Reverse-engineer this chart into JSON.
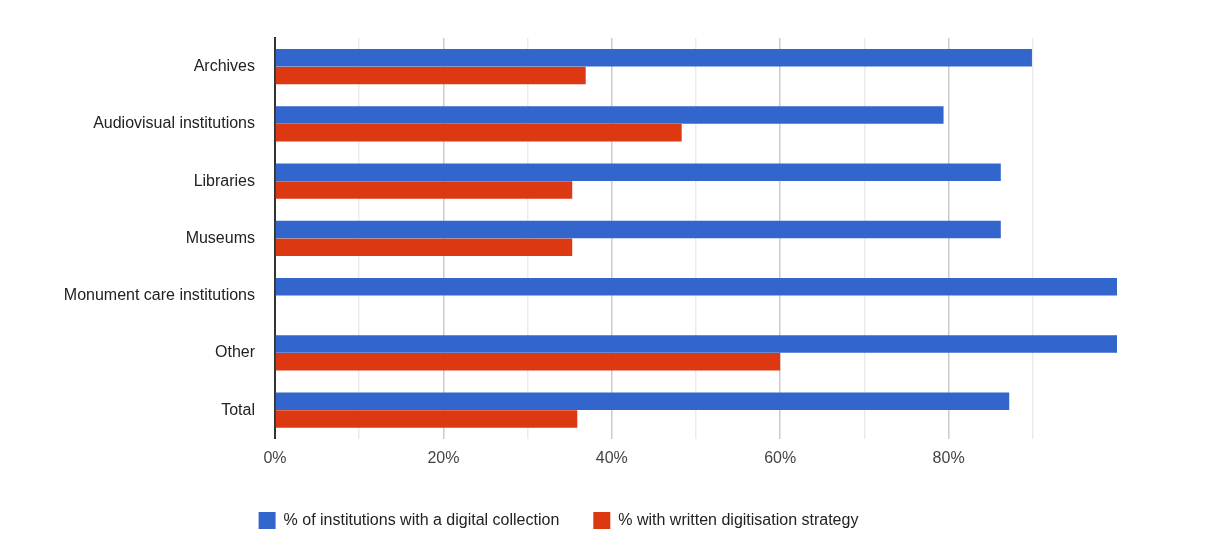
{
  "chart_data": {
    "type": "bar",
    "orientation": "horizontal",
    "categories": [
      "Archives",
      "Audiovisual institutions",
      "Libraries",
      "Museums",
      "Monument care institutions",
      "Other",
      "Total"
    ],
    "series": [
      {
        "name": "% of institutions with a digital collection",
        "color": "#3366cc",
        "values": [
          89.9,
          79.4,
          86.2,
          86.2,
          100,
          100,
          87.2
        ]
      },
      {
        "name": "% with written digitisation strategy",
        "color": "#dc3912",
        "values": [
          36.9,
          48.3,
          35.3,
          35.3,
          null,
          60,
          35.9
        ]
      }
    ],
    "xlim": [
      0,
      100
    ],
    "xticks": [
      {
        "value": 0,
        "label": "0%"
      },
      {
        "value": 10,
        "label": null
      },
      {
        "value": 20,
        "label": "20%"
      },
      {
        "value": 30,
        "label": null
      },
      {
        "value": 40,
        "label": "40%"
      },
      {
        "value": 50,
        "label": null
      },
      {
        "value": 60,
        "label": "60%"
      },
      {
        "value": 70,
        "label": null
      },
      {
        "value": 80,
        "label": "80%"
      },
      {
        "value": 90,
        "label": null
      }
    ],
    "grid": "x",
    "legend": "bottom"
  }
}
